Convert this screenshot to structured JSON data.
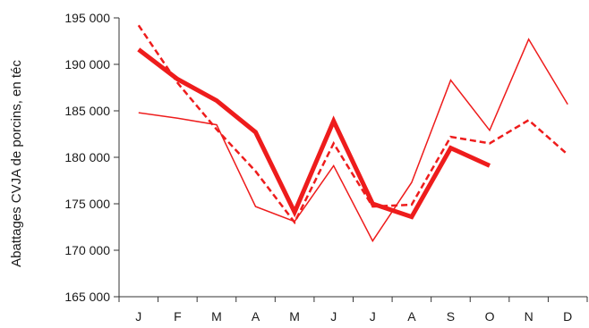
{
  "chart_data": {
    "type": "line",
    "ylabel": "Abattages CVJA de porcins, en téc",
    "ylim": [
      165000,
      195000
    ],
    "yticks": [
      165000,
      170000,
      175000,
      180000,
      185000,
      190000,
      195000
    ],
    "ytick_labels": [
      "165 000",
      "170 000",
      "175 000",
      "180 000",
      "185 000",
      "190 000",
      "195 000"
    ],
    "categories": [
      "J",
      "F",
      "M",
      "A",
      "M",
      "J",
      "J",
      "A",
      "S",
      "O",
      "N",
      "D"
    ],
    "grid": false,
    "legend": "none",
    "color": "#ee1c1c",
    "series": [
      {
        "style": "thin",
        "values": [
          184800,
          184200,
          183500,
          174700,
          173100,
          179100,
          171000,
          177300,
          188300,
          182900,
          192700,
          185700
        ]
      },
      {
        "style": "dashed",
        "values": [
          194200,
          188000,
          183000,
          178500,
          173000,
          181500,
          174700,
          174900,
          182200,
          181500,
          184000,
          180300
        ]
      },
      {
        "style": "thick",
        "values": [
          191600,
          188400,
          186100,
          182700,
          174100,
          183900,
          175000,
          173600,
          181000,
          179100,
          null,
          null
        ]
      }
    ]
  }
}
